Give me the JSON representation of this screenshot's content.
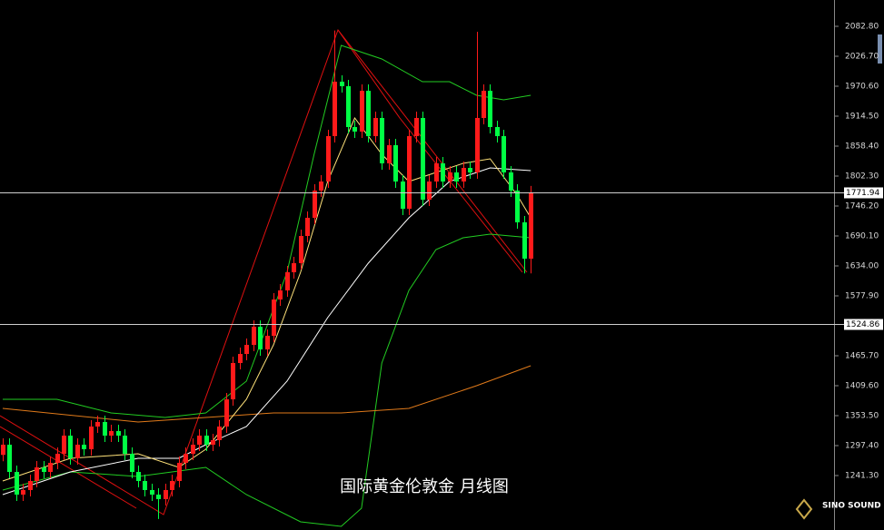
{
  "chart_data": {
    "type": "candlestick",
    "title": "国际黄金伦敦金 月线图",
    "brand": "SINO SOUND",
    "xlim": [
      -0.4,
      122.8
    ],
    "ylim": [
      1139.3,
      2132.1
    ],
    "yticks": [
      {
        "value": 2082.8,
        "label": "2082.80"
      },
      {
        "value": 2026.7,
        "label": "2026.70"
      },
      {
        "value": 1970.6,
        "label": "1970.60"
      },
      {
        "value": 1914.5,
        "label": "1914.50"
      },
      {
        "value": 1858.4,
        "label": "1858.40"
      },
      {
        "value": 1802.3,
        "label": "1802.30"
      },
      {
        "value": 1746.2,
        "label": "1746.20"
      },
      {
        "value": 1690.1,
        "label": "1690.10"
      },
      {
        "value": 1634,
        "label": "1634.00"
      },
      {
        "value": 1577.9,
        "label": "1577.90"
      },
      {
        "value": 1465.7,
        "label": "1465.70"
      },
      {
        "value": 1409.6,
        "label": "1409.60"
      },
      {
        "value": 1353.5,
        "label": "1353.50"
      },
      {
        "value": 1297.4,
        "label": "1297.40"
      },
      {
        "value": 1241.3,
        "label": "1241.30"
      }
    ],
    "price_lines": [
      {
        "value": 1771.94,
        "label": "1771.94"
      },
      {
        "value": 1524.86,
        "label": "1524.86"
      }
    ],
    "up_color": "#ff1a1a",
    "down_color": "#00ff44",
    "open": [
      1280,
      1299.1,
      1248.1,
      1205.6,
      1214.1,
      1231.1,
      1256.6,
      1248.1,
      1265.1,
      1282.1,
      1316.1,
      1273.6,
      1299.1,
      1290.6,
      1333.1,
      1341.6,
      1316.1,
      1324.6,
      1316.1,
      1282.1,
      1248.1,
      1231.1,
      1214.1,
      1205.6,
      1197.1,
      1214.1,
      1231.1,
      1265.1,
      1282.1,
      1299.1,
      1316.1,
      1299.1,
      1307.6,
      1333.1,
      1384.1,
      1452.1,
      1469.1,
      1486.1,
      1520.1,
      1477.6,
      1503.1,
      1571.1,
      1588.1,
      1622.1,
      1639.1,
      1690.1,
      1724.1,
      1775.1,
      1792.1,
      1877.1,
      1979.1,
      1970.6,
      1894.1,
      1885.6,
      1962.1,
      1877.1,
      1911.1,
      1826.1,
      1860.1,
      1792.1,
      1741.1,
      1877.1,
      1911.1,
      1758.1,
      1792.1,
      1826.1,
      1792.1,
      1809.1,
      1792.1,
      1817.6,
      1809.1,
      1911.1,
      1962.1,
      1894.1,
      1877.1,
      1809.1,
      1775.1,
      1715.6,
      1647.6
    ],
    "high": [
      1311.1,
      1311.1,
      1260.1,
      1226.1,
      1243.1,
      1268.6,
      1268.6,
      1277.1,
      1294.1,
      1328.1,
      1328.1,
      1311.1,
      1311.1,
      1345.1,
      1353.6,
      1353.6,
      1336.6,
      1336.6,
      1328.1,
      1294.1,
      1260.1,
      1243.1,
      1226.1,
      1217.6,
      1226.1,
      1243.1,
      1277.1,
      1294.1,
      1311.1,
      1328.1,
      1328.1,
      1319.6,
      1345.1,
      1396.1,
      1464.1,
      1481.1,
      1498.1,
      1532.1,
      1532.1,
      1515.1,
      1583.1,
      1600.1,
      1634.1,
      1651.1,
      1702.1,
      1736.1,
      1787.1,
      1804.1,
      1889.1,
      2075,
      1991.1,
      1982.6,
      1906.1,
      1974.1,
      1974.1,
      1923.1,
      1923.1,
      1872.1,
      1872.1,
      1804.1,
      1889.1,
      1923.1,
      1923.1,
      1804.1,
      1838.1,
      1838.1,
      1821.1,
      1821.1,
      1829.6,
      1829.6,
      2072.6,
      1974.1,
      1974.1,
      1906.1,
      1889.1,
      1821.1,
      1787.1,
      1727.6,
      1783.9
    ],
    "low": [
      1268,
      1236.1,
      1193.6,
      1193.6,
      1202.1,
      1219.1,
      1236.1,
      1236.1,
      1253.1,
      1270.1,
      1261.6,
      1261.6,
      1278.6,
      1278.6,
      1321.1,
      1304.1,
      1304.1,
      1304.1,
      1270.1,
      1236.1,
      1219.1,
      1202.1,
      1193.6,
      1160,
      1185.1,
      1202.1,
      1219.1,
      1253.1,
      1270.1,
      1287.1,
      1287.1,
      1287.1,
      1295.6,
      1321.1,
      1372.1,
      1440.1,
      1457.1,
      1474.1,
      1465.6,
      1465.6,
      1491.1,
      1559.1,
      1576.1,
      1610.1,
      1627.1,
      1678.1,
      1712.1,
      1763.1,
      1780.1,
      1865.1,
      1958.6,
      1882.1,
      1873.6,
      1873.6,
      1865.1,
      1865.1,
      1814.1,
      1814.1,
      1780.1,
      1729.1,
      1729.1,
      1865.1,
      1746.1,
      1746.1,
      1780.1,
      1780.1,
      1780.1,
      1780.1,
      1780.1,
      1797.1,
      1797.1,
      1899.1,
      1882.1,
      1865.1,
      1797.1,
      1763.1,
      1703.6,
      1620,
      1620
    ],
    "close": [
      1299.1,
      1248.1,
      1205.6,
      1214.1,
      1231.1,
      1256.6,
      1248.1,
      1265.1,
      1282.1,
      1316.1,
      1273.6,
      1299.1,
      1290.6,
      1333.1,
      1341.6,
      1316.1,
      1324.6,
      1316.1,
      1282.1,
      1248.1,
      1231.1,
      1214.1,
      1205.6,
      1197.1,
      1214.1,
      1231.1,
      1265.1,
      1282.1,
      1299.1,
      1316.1,
      1299.1,
      1307.6,
      1333.1,
      1384.1,
      1452.1,
      1469.1,
      1486.1,
      1520.1,
      1477.6,
      1503.1,
      1571.1,
      1588.1,
      1622.1,
      1639.1,
      1690.1,
      1724.1,
      1775.1,
      1792.1,
      1877.1,
      1979.1,
      1970.6,
      1894.1,
      1885.6,
      1962.1,
      1877.1,
      1911.1,
      1826.1,
      1860.1,
      1792.1,
      1741.1,
      1877.1,
      1911.1,
      1758.1,
      1792.1,
      1826.1,
      1792.1,
      1809.1,
      1792.1,
      1817.6,
      1809.1,
      1911.1,
      1962.1,
      1894.1,
      1877.1,
      1809.1,
      1775.1,
      1715.6,
      1647.6,
      1771.9
    ],
    "indicators": [
      {
        "color": "#22cc22",
        "x": [
          0,
          8,
          16,
          24,
          30,
          36,
          42,
          46,
          50,
          56,
          62,
          66,
          70,
          74,
          78
        ],
        "values": [
          1384.1,
          1384.1,
          1358.6,
          1350.1,
          1358.6,
          1418.1,
          1622.1,
          1843.1,
          2047.1,
          2021.6,
          1979.1,
          1979.1,
          1953.6,
          1945.1,
          1953.6
        ]
      },
      {
        "color": "#22cc22",
        "x": [
          0,
          10,
          20,
          30,
          36,
          44,
          50,
          53,
          56,
          60,
          64,
          68,
          72,
          78
        ],
        "values": [
          1214.1,
          1248.1,
          1239.6,
          1256.6,
          1205.6,
          1154.6,
          1146.1,
          1180.1,
          1452.1,
          1588.1,
          1664.6,
          1686.7,
          1693.5,
          1686.7
        ]
      },
      {
        "color": "#e07a1a",
        "x": [
          0,
          20,
          30,
          40,
          50,
          60,
          70,
          78
        ],
        "values": [
          1367.1,
          1341.6,
          1350.1,
          1358.6,
          1358.6,
          1367.1,
          1409.6,
          1447
        ]
      },
      {
        "color": "#ffffff",
        "x": [
          0,
          10,
          20,
          26,
          30,
          36,
          42,
          48,
          54,
          60,
          66,
          72,
          78
        ],
        "values": [
          1205.6,
          1248.1,
          1273.6,
          1273.6,
          1299.1,
          1333.1,
          1418.1,
          1537.1,
          1639.1,
          1724.1,
          1792.1,
          1817.6,
          1812.5
        ]
      },
      {
        "color": "#ffe27a",
        "x": [
          0,
          10,
          20,
          26,
          30,
          36,
          40,
          44,
          48,
          52,
          56,
          60,
          64,
          68,
          72,
          76,
          78
        ],
        "values": [
          1231.1,
          1273.6,
          1282.1,
          1256.6,
          1290.6,
          1384.1,
          1486.1,
          1622.1,
          1792.1,
          1911.1,
          1843.1,
          1792.1,
          1809.1,
          1826.1,
          1834.6,
          1766.6,
          1724.1
        ]
      }
    ]
  }
}
